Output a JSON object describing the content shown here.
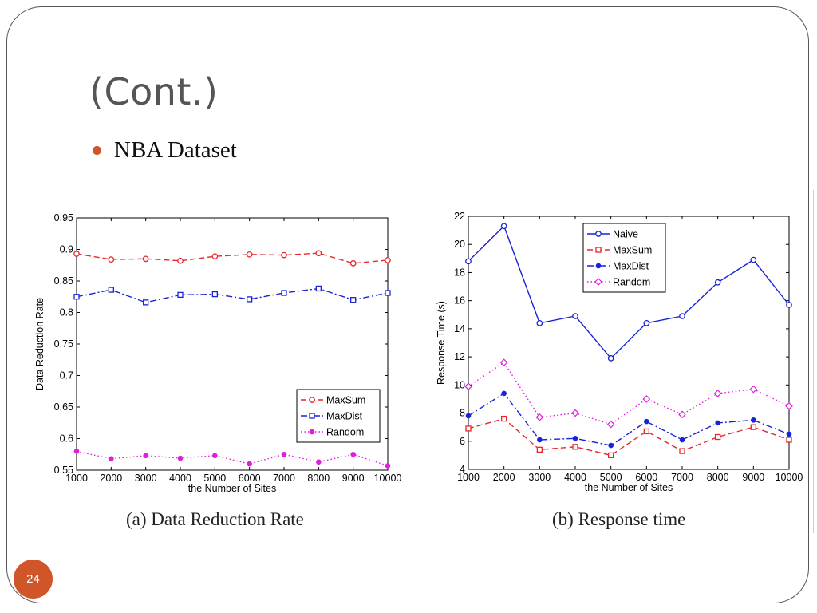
{
  "slide": {
    "title": "(Cont.)",
    "bullet": "NBA Dataset",
    "page_number": "24",
    "accent_color": "#d0562a"
  },
  "captions": {
    "a": "(a) Data Reduction Rate",
    "b": "(b) Response time"
  },
  "chart_data": [
    {
      "type": "line",
      "title": "",
      "xlabel": "the Number of Sites",
      "ylabel": "Data Reduction Rate",
      "x": [
        1000,
        2000,
        3000,
        4000,
        5000,
        6000,
        7000,
        8000,
        9000,
        10000
      ],
      "xlim": [
        1000,
        10000
      ],
      "ylim": [
        0.55,
        0.95
      ],
      "yticks": [
        0.55,
        0.6,
        0.65,
        0.7,
        0.75,
        0.8,
        0.85,
        0.9,
        0.95
      ],
      "ytick_labels": [
        "0.55",
        "0.6",
        "0.65",
        "0.7",
        "0.75",
        "0.8",
        "0.85",
        "0.9",
        "0.95"
      ],
      "grid": false,
      "legend_position": "lower-right",
      "series": [
        {
          "name": "MaxSum",
          "color": "#e8262b",
          "marker": "circle-open",
          "dash": "dashed",
          "values": [
            0.893,
            0.884,
            0.885,
            0.882,
            0.889,
            0.892,
            0.891,
            0.894,
            0.878,
            0.883
          ]
        },
        {
          "name": "MaxDist",
          "color": "#1a22d6",
          "marker": "square-open",
          "dash": "dashdot",
          "values": [
            0.825,
            0.836,
            0.816,
            0.828,
            0.829,
            0.821,
            0.831,
            0.838,
            0.82,
            0.831
          ]
        },
        {
          "name": "Random",
          "color": "#e21ddd",
          "marker": "circle-filled",
          "dash": "dotted",
          "values": [
            0.58,
            0.568,
            0.573,
            0.569,
            0.573,
            0.56,
            0.575,
            0.563,
            0.575,
            0.557
          ]
        }
      ]
    },
    {
      "type": "line",
      "title": "",
      "xlabel": "the Number of Sites",
      "ylabel": "Response Time (s)",
      "x": [
        1000,
        2000,
        3000,
        4000,
        5000,
        6000,
        7000,
        8000,
        9000,
        10000
      ],
      "xlim": [
        1000,
        10000
      ],
      "ylim": [
        4,
        22
      ],
      "yticks": [
        4,
        6,
        8,
        10,
        12,
        14,
        16,
        18,
        20,
        22
      ],
      "ytick_labels": [
        "4",
        "6",
        "8",
        "10",
        "12",
        "14",
        "16",
        "18",
        "20",
        "22"
      ],
      "grid": false,
      "legend_position": "top-center",
      "series": [
        {
          "name": "Naive",
          "color": "#1a22d6",
          "marker": "circle-open",
          "dash": "solid",
          "values": [
            18.8,
            21.3,
            14.4,
            14.9,
            11.9,
            14.4,
            14.9,
            17.3,
            18.9,
            15.7
          ]
        },
        {
          "name": "MaxSum",
          "color": "#e8262b",
          "marker": "square-open",
          "dash": "dashed",
          "values": [
            6.9,
            7.6,
            5.4,
            5.6,
            5.0,
            6.7,
            5.3,
            6.3,
            7.0,
            6.1
          ]
        },
        {
          "name": "MaxDist",
          "color": "#1a22d6",
          "marker": "circle-filled",
          "dash": "dashdot",
          "values": [
            7.8,
            9.4,
            6.1,
            6.2,
            5.7,
            7.4,
            6.1,
            7.3,
            7.5,
            6.5
          ]
        },
        {
          "name": "Random",
          "color": "#e21ddd",
          "marker": "diamond-open",
          "dash": "dotted",
          "values": [
            9.9,
            11.6,
            7.7,
            8.0,
            7.2,
            9.0,
            7.9,
            9.4,
            9.7,
            8.5
          ]
        }
      ]
    }
  ]
}
